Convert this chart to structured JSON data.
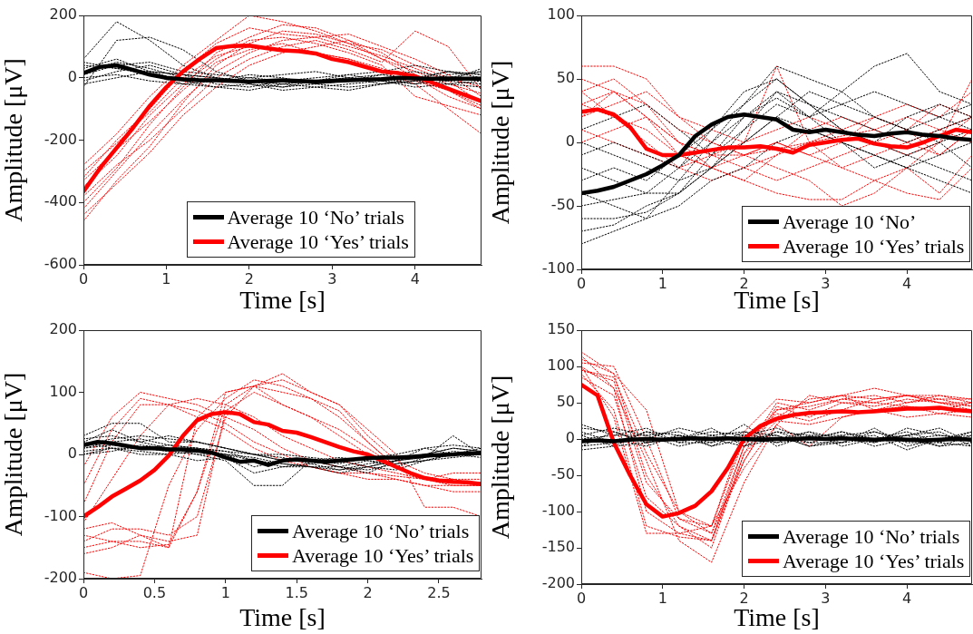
{
  "chart_data": [
    {
      "type": "line",
      "xlabel": "Time [s]",
      "ylabel": "Amplitude [μV]",
      "xlim": [
        0,
        4.8
      ],
      "xticks": [
        0,
        1,
        2,
        3,
        4
      ],
      "ylim": [
        -600,
        200
      ],
      "yticks": [
        -600,
        -400,
        -200,
        0,
        200
      ],
      "legend": "bottom",
      "x": [
        0,
        0.4,
        0.8,
        1.2,
        1.6,
        2.0,
        2.4,
        2.8,
        3.2,
        3.6,
        4.0,
        4.4,
        4.8
      ],
      "series": [
        {
          "color": "#000000",
          "line_style": "dotted",
          "values": [
            60,
            180,
            120,
            40,
            0,
            -10,
            -20,
            -10,
            0,
            10,
            -5,
            20,
            10
          ]
        },
        {
          "color": "#000000",
          "line_style": "dotted",
          "values": [
            -30,
            120,
            130,
            90,
            20,
            -10,
            -30,
            -20,
            -10,
            0,
            -20,
            10,
            20
          ]
        },
        {
          "color": "#000000",
          "line_style": "dotted",
          "values": [
            50,
            30,
            10,
            -20,
            -30,
            -20,
            -40,
            -30,
            -20,
            -10,
            0,
            -10,
            -20
          ]
        },
        {
          "color": "#000000",
          "line_style": "dotted",
          "values": [
            20,
            50,
            30,
            0,
            -10,
            10,
            0,
            -20,
            -10,
            10,
            20,
            0,
            -10
          ]
        },
        {
          "color": "#000000",
          "line_style": "dotted",
          "values": [
            -10,
            20,
            40,
            10,
            -20,
            -30,
            -10,
            0,
            10,
            -10,
            -20,
            -10,
            30
          ]
        },
        {
          "color": "#000000",
          "line_style": "dotted",
          "values": [
            30,
            60,
            20,
            -10,
            -30,
            -40,
            -20,
            -30,
            -40,
            -20,
            0,
            20,
            10
          ]
        },
        {
          "color": "#000000",
          "line_style": "dotted",
          "values": [
            0,
            10,
            -10,
            -20,
            -10,
            0,
            10,
            20,
            0,
            -10,
            -30,
            -20,
            -10
          ]
        },
        {
          "color": "#000000",
          "line_style": "dotted",
          "values": [
            40,
            30,
            20,
            10,
            0,
            -20,
            -30,
            -10,
            10,
            20,
            40,
            20,
            0
          ]
        },
        {
          "color": "#000000",
          "line_style": "dotted",
          "values": [
            10,
            40,
            50,
            20,
            10,
            0,
            -10,
            -20,
            -30,
            -20,
            -10,
            -20,
            -30
          ]
        },
        {
          "color": "#000000",
          "line_style": "dotted",
          "values": [
            -20,
            0,
            20,
            10,
            0,
            -10,
            -20,
            -10,
            0,
            -20,
            -10,
            0,
            20
          ]
        },
        {
          "color": "#ff0000",
          "line_style": "dotted",
          "values": [
            -280,
            -180,
            -60,
            40,
            120,
            200,
            180,
            150,
            110,
            60,
            20,
            -20,
            -50
          ]
        },
        {
          "color": "#ff0000",
          "line_style": "dotted",
          "values": [
            -320,
            -200,
            -100,
            20,
            110,
            160,
            140,
            130,
            100,
            70,
            30,
            -10,
            -80
          ]
        },
        {
          "color": "#ff0000",
          "line_style": "dotted",
          "values": [
            -400,
            -290,
            -150,
            -30,
            80,
            130,
            170,
            160,
            120,
            60,
            0,
            -60,
            -100
          ]
        },
        {
          "color": "#ff0000",
          "line_style": "dotted",
          "values": [
            -460,
            -330,
            -220,
            -80,
            40,
            110,
            150,
            140,
            110,
            90,
            40,
            0,
            -30
          ]
        },
        {
          "color": "#ff0000",
          "line_style": "dotted",
          "values": [
            -350,
            -250,
            -120,
            -20,
            60,
            120,
            130,
            110,
            80,
            40,
            -60,
            -90,
            -120
          ]
        },
        {
          "color": "#ff0000",
          "line_style": "dotted",
          "values": [
            -420,
            -300,
            -180,
            -70,
            20,
            80,
            120,
            130,
            140,
            100,
            60,
            10,
            -60
          ]
        },
        {
          "color": "#ff0000",
          "line_style": "dotted",
          "values": [
            -300,
            -210,
            -110,
            0,
            70,
            100,
            90,
            80,
            60,
            20,
            -20,
            -100,
            -180
          ]
        },
        {
          "color": "#ff0000",
          "line_style": "dotted",
          "values": [
            -380,
            -280,
            -200,
            -100,
            0,
            60,
            100,
            120,
            90,
            50,
            150,
            100,
            -40
          ]
        },
        {
          "color": "#ff0000",
          "line_style": "dotted",
          "values": [
            -330,
            -230,
            -140,
            -40,
            50,
            90,
            110,
            80,
            60,
            30,
            -10,
            -40,
            -90
          ]
        },
        {
          "color": "#ff0000",
          "line_style": "dotted",
          "values": [
            -440,
            -340,
            -240,
            -120,
            -30,
            40,
            80,
            100,
            120,
            80,
            10,
            -40,
            -100
          ]
        },
        {
          "name": "Average 10 ‘No’ trials",
          "color": "#000000",
          "line_style": "solid",
          "x": [
            0,
            0.2,
            0.4,
            0.6,
            0.8,
            1.0,
            1.2,
            1.4,
            1.6,
            1.8,
            2.0,
            2.2,
            2.4,
            2.6,
            2.8,
            3.0,
            3.2,
            3.4,
            3.6,
            3.8,
            4.0,
            4.2,
            4.4,
            4.6,
            4.8
          ],
          "values": [
            15,
            35,
            40,
            25,
            10,
            0,
            -5,
            -8,
            -8,
            -10,
            -12,
            -10,
            -8,
            -10,
            -12,
            -10,
            -8,
            -6,
            -4,
            0,
            -2,
            -3,
            -2,
            -3,
            -3
          ]
        },
        {
          "name": "Average 10 ‘Yes’ trials",
          "color": "#ff0000",
          "line_style": "solid",
          "x": [
            0,
            0.2,
            0.4,
            0.6,
            0.8,
            1.0,
            1.2,
            1.4,
            1.6,
            1.8,
            2.0,
            2.2,
            2.4,
            2.6,
            2.8,
            3.0,
            3.2,
            3.4,
            3.6,
            3.8,
            4.0,
            4.2,
            4.4,
            4.6,
            4.8
          ],
          "values": [
            -365,
            -290,
            -225,
            -160,
            -90,
            -30,
            20,
            60,
            95,
            102,
            103,
            95,
            88,
            85,
            78,
            60,
            50,
            35,
            20,
            15,
            5,
            -15,
            -35,
            -55,
            -75
          ]
        }
      ]
    },
    {
      "type": "line",
      "xlabel": "Time [s]",
      "ylabel": "Amplitude [μV]",
      "xlim": [
        0,
        4.8
      ],
      "xticks": [
        0,
        1,
        2,
        3,
        4
      ],
      "ylim": [
        -100,
        100
      ],
      "yticks": [
        -100,
        -50,
        0,
        50,
        100
      ],
      "legend": "bottom right",
      "x": [
        0,
        0.4,
        0.8,
        1.2,
        1.6,
        2.0,
        2.4,
        2.8,
        3.2,
        3.6,
        4.0,
        4.4,
        4.8
      ],
      "series": [
        {
          "color": "#000000",
          "line_style": "dotted",
          "values": [
            -80,
            -70,
            -60,
            -30,
            0,
            20,
            40,
            30,
            10,
            0,
            -10,
            -20,
            -30
          ]
        },
        {
          "color": "#000000",
          "line_style": "dotted",
          "values": [
            -50,
            -45,
            -40,
            -20,
            10,
            40,
            50,
            30,
            20,
            10,
            0,
            10,
            20
          ]
        },
        {
          "color": "#000000",
          "line_style": "dotted",
          "values": [
            -20,
            -30,
            -40,
            -40,
            -10,
            20,
            35,
            20,
            30,
            40,
            30,
            20,
            10
          ]
        },
        {
          "color": "#000000",
          "line_style": "dotted",
          "values": [
            0,
            -10,
            -20,
            -30,
            -20,
            0,
            20,
            40,
            30,
            20,
            10,
            0,
            -20
          ]
        },
        {
          "color": "#000000",
          "line_style": "dotted",
          "values": [
            -60,
            -60,
            -55,
            -40,
            -20,
            10,
            30,
            20,
            40,
            60,
            70,
            40,
            30
          ]
        },
        {
          "color": "#000000",
          "line_style": "dotted",
          "values": [
            -40,
            -50,
            -60,
            -50,
            -30,
            -20,
            0,
            10,
            0,
            -10,
            -20,
            -30,
            -40
          ]
        },
        {
          "color": "#000000",
          "line_style": "dotted",
          "values": [
            -10,
            0,
            -10,
            -20,
            0,
            30,
            50,
            30,
            10,
            0,
            20,
            30,
            20
          ]
        },
        {
          "color": "#000000",
          "line_style": "dotted",
          "values": [
            -70,
            -65,
            -50,
            -40,
            -20,
            0,
            20,
            10,
            0,
            -20,
            -10,
            0,
            10
          ]
        },
        {
          "color": "#000000",
          "line_style": "dotted",
          "values": [
            10,
            20,
            30,
            10,
            -10,
            10,
            40,
            20,
            0,
            -10,
            -20,
            -10,
            0
          ]
        },
        {
          "color": "#000000",
          "line_style": "dotted",
          "values": [
            -30,
            -20,
            -30,
            -10,
            10,
            30,
            60,
            50,
            40,
            20,
            10,
            20,
            30
          ]
        },
        {
          "color": "#ff0000",
          "line_style": "dotted",
          "values": [
            60,
            60,
            50,
            20,
            10,
            0,
            60,
            0,
            -20,
            -10,
            0,
            10,
            20
          ]
        },
        {
          "color": "#ff0000",
          "line_style": "dotted",
          "values": [
            40,
            50,
            30,
            10,
            0,
            -10,
            -20,
            -30,
            -50,
            -40,
            -20,
            0,
            20
          ]
        },
        {
          "color": "#ff0000",
          "line_style": "dotted",
          "values": [
            20,
            40,
            30,
            0,
            -10,
            -20,
            -30,
            -20,
            -10,
            0,
            10,
            -10,
            10
          ]
        },
        {
          "color": "#ff0000",
          "line_style": "dotted",
          "values": [
            30,
            20,
            10,
            -10,
            -20,
            -30,
            -10,
            0,
            10,
            20,
            30,
            20,
            40
          ]
        },
        {
          "color": "#ff0000",
          "line_style": "dotted",
          "values": [
            10,
            0,
            -10,
            -20,
            -10,
            -10,
            0,
            -10,
            -20,
            -30,
            -40,
            -45,
            -20
          ]
        },
        {
          "color": "#ff0000",
          "line_style": "dotted",
          "values": [
            50,
            40,
            20,
            0,
            -10,
            0,
            10,
            20,
            10,
            0,
            -10,
            0,
            50
          ]
        },
        {
          "color": "#ff0000",
          "line_style": "dotted",
          "values": [
            0,
            10,
            20,
            0,
            -20,
            -30,
            -40,
            -45,
            -45,
            -30,
            -20,
            -40,
            -10
          ]
        },
        {
          "color": "#ff0000",
          "line_style": "dotted",
          "values": [
            20,
            30,
            40,
            20,
            0,
            -10,
            -5,
            0,
            5,
            10,
            20,
            10,
            0
          ]
        },
        {
          "color": "#ff0000",
          "line_style": "dotted",
          "values": [
            40,
            20,
            0,
            -20,
            -30,
            -20,
            -10,
            10,
            20,
            10,
            0,
            -10,
            10
          ]
        },
        {
          "color": "#ff0000",
          "line_style": "dotted",
          "values": [
            30,
            40,
            20,
            -10,
            -20,
            -10,
            0,
            -10,
            0,
            20,
            10,
            30,
            20
          ]
        },
        {
          "name": "Average 10 ‘No’",
          "color": "#000000",
          "line_style": "solid",
          "x": [
            0,
            0.2,
            0.4,
            0.6,
            0.8,
            1.0,
            1.2,
            1.4,
            1.6,
            1.8,
            2.0,
            2.2,
            2.4,
            2.6,
            2.8,
            3.0,
            3.2,
            3.4,
            3.6,
            3.8,
            4.0,
            4.2,
            4.4,
            4.6,
            4.8
          ],
          "values": [
            -40,
            -38,
            -35,
            -30,
            -25,
            -18,
            -10,
            5,
            14,
            20,
            22,
            20,
            18,
            10,
            8,
            10,
            8,
            6,
            5,
            7,
            8,
            6,
            5,
            3,
            2
          ]
        },
        {
          "name": "Average 10 ‘Yes’ trials",
          "color": "#ff0000",
          "line_style": "solid",
          "x": [
            0,
            0.2,
            0.4,
            0.6,
            0.8,
            1.0,
            1.2,
            1.4,
            1.6,
            1.8,
            2.0,
            2.2,
            2.4,
            2.6,
            2.8,
            3.0,
            3.2,
            3.4,
            3.6,
            3.8,
            4.0,
            4.2,
            4.4,
            4.6,
            4.8
          ],
          "values": [
            24,
            26,
            22,
            12,
            -5,
            -10,
            -10,
            -8,
            -6,
            -4,
            -4,
            -3,
            -5,
            -8,
            -2,
            0,
            2,
            3,
            -1,
            -3,
            -4,
            0,
            5,
            10,
            8
          ]
        }
      ]
    },
    {
      "type": "line",
      "xlabel": "Time [s]",
      "ylabel": "Amplitude [μV]",
      "xlim": [
        0,
        2.8
      ],
      "xticks": [
        0,
        0.5,
        1,
        1.5,
        2,
        2.5
      ],
      "ylim": [
        -200,
        200
      ],
      "yticks": [
        -200,
        -100,
        0,
        100,
        200
      ],
      "legend": "bottom right",
      "x": [
        0,
        0.2,
        0.4,
        0.6,
        0.8,
        1.0,
        1.2,
        1.4,
        1.6,
        1.8,
        2.0,
        2.2,
        2.4,
        2.6,
        2.8
      ],
      "series": [
        {
          "color": "#000000",
          "line_style": "dotted",
          "values": [
            20,
            40,
            20,
            10,
            0,
            -10,
            -50,
            -50,
            -10,
            -20,
            -10,
            -20,
            -5,
            30,
            0
          ]
        },
        {
          "color": "#000000",
          "line_style": "dotted",
          "values": [
            10,
            20,
            25,
            15,
            10,
            0,
            -10,
            -20,
            -20,
            -30,
            -20,
            -10,
            0,
            10,
            5
          ]
        },
        {
          "color": "#000000",
          "line_style": "dotted",
          "values": [
            0,
            10,
            0,
            0,
            5,
            0,
            -20,
            -10,
            -10,
            -20,
            -30,
            -10,
            10,
            0,
            -5
          ]
        },
        {
          "color": "#000000",
          "line_style": "dotted",
          "values": [
            30,
            50,
            50,
            20,
            20,
            10,
            0,
            -5,
            -15,
            -10,
            -5,
            0,
            10,
            15,
            10
          ]
        },
        {
          "color": "#000000",
          "line_style": "dotted",
          "values": [
            5,
            10,
            5,
            0,
            -10,
            -5,
            -30,
            -20,
            -15,
            -25,
            -20,
            -10,
            -5,
            0,
            0
          ]
        },
        {
          "color": "#000000",
          "line_style": "dotted",
          "values": [
            15,
            25,
            30,
            25,
            20,
            10,
            0,
            -10,
            -10,
            -15,
            -5,
            -5,
            0,
            10,
            5
          ]
        },
        {
          "color": "#000000",
          "line_style": "dotted",
          "values": [
            0,
            5,
            15,
            10,
            10,
            5,
            -10,
            -15,
            -20,
            -20,
            -25,
            -15,
            -10,
            -5,
            0
          ]
        },
        {
          "color": "#000000",
          "line_style": "dotted",
          "values": [
            25,
            30,
            20,
            30,
            20,
            10,
            0,
            0,
            -5,
            -10,
            -20,
            -25,
            -10,
            0,
            10
          ]
        },
        {
          "color": "#000000",
          "line_style": "dotted",
          "values": [
            10,
            15,
            10,
            5,
            0,
            0,
            -5,
            -15,
            -20,
            -25,
            -15,
            -10,
            -5,
            5,
            0
          ]
        },
        {
          "color": "#000000",
          "line_style": "dotted",
          "values": [
            20,
            10,
            10,
            15,
            10,
            5,
            0,
            -10,
            -10,
            -5,
            -10,
            -15,
            -10,
            0,
            5
          ]
        },
        {
          "color": "#ff0000",
          "line_style": "dotted",
          "values": [
            -130,
            -140,
            -150,
            -145,
            -60,
            80,
            110,
            130,
            100,
            80,
            40,
            0,
            -85,
            -85,
            -100
          ]
        },
        {
          "color": "#ff0000",
          "line_style": "dotted",
          "values": [
            -190,
            -200,
            -195,
            -50,
            40,
            90,
            120,
            110,
            90,
            70,
            20,
            -20,
            -40,
            -50,
            -50
          ]
        },
        {
          "color": "#ff0000",
          "line_style": "dotted",
          "values": [
            -140,
            -120,
            -120,
            -130,
            -100,
            60,
            110,
            120,
            100,
            80,
            30,
            -10,
            -30,
            -40,
            -40
          ]
        },
        {
          "color": "#ff0000",
          "line_style": "dotted",
          "values": [
            -120,
            -110,
            -130,
            -140,
            -130,
            70,
            100,
            80,
            60,
            40,
            10,
            -20,
            -40,
            -30,
            -30
          ]
        },
        {
          "color": "#ff0000",
          "line_style": "dotted",
          "values": [
            -50,
            40,
            90,
            80,
            70,
            50,
            20,
            0,
            -20,
            -30,
            -30,
            -40,
            -50,
            -50,
            -50
          ]
        },
        {
          "color": "#ff0000",
          "line_style": "dotted",
          "values": [
            -80,
            20,
            80,
            80,
            60,
            40,
            10,
            -10,
            -20,
            -30,
            -40,
            -40,
            -50,
            -60,
            -60
          ]
        },
        {
          "color": "#ff0000",
          "line_style": "dotted",
          "values": [
            -150,
            -140,
            -140,
            -150,
            60,
            100,
            110,
            100,
            90,
            60,
            20,
            -20,
            -40,
            -40,
            -50
          ]
        },
        {
          "color": "#ff0000",
          "line_style": "dotted",
          "values": [
            -20,
            60,
            100,
            90,
            80,
            60,
            40,
            10,
            -10,
            -20,
            -30,
            -35,
            -40,
            -40,
            -50
          ]
        },
        {
          "color": "#ff0000",
          "line_style": "dotted",
          "values": [
            -110,
            -40,
            30,
            80,
            90,
            80,
            60,
            30,
            10,
            -10,
            -20,
            -30,
            -40,
            -45,
            -45
          ]
        },
        {
          "color": "#ff0000",
          "line_style": "dotted",
          "values": [
            -160,
            -150,
            -130,
            -150,
            -60,
            100,
            110,
            80,
            60,
            30,
            0,
            -20,
            -40,
            -45,
            -50
          ]
        },
        {
          "name": "Average 10 ‘No’ trials",
          "color": "#000000",
          "line_style": "solid",
          "x": [
            0,
            0.1,
            0.2,
            0.3,
            0.4,
            0.5,
            0.6,
            0.7,
            0.8,
            0.9,
            1.0,
            1.1,
            1.2,
            1.3,
            1.4,
            1.5,
            1.6,
            1.7,
            1.8,
            1.9,
            2.0,
            2.1,
            2.2,
            2.3,
            2.4,
            2.5,
            2.6,
            2.7,
            2.8
          ],
          "values": [
            15,
            20,
            18,
            14,
            10,
            10,
            8,
            8,
            6,
            3,
            -5,
            -12,
            -10,
            -17,
            -10,
            -8,
            -10,
            -12,
            -10,
            -8,
            -6,
            -5,
            -5,
            -4,
            -2,
            -1,
            0,
            2,
            2
          ]
        },
        {
          "name": "Average 10 ‘Yes’ trials",
          "color": "#ff0000",
          "line_style": "solid",
          "x": [
            0,
            0.1,
            0.2,
            0.3,
            0.4,
            0.5,
            0.6,
            0.7,
            0.8,
            0.9,
            1.0,
            1.1,
            1.2,
            1.3,
            1.4,
            1.5,
            1.6,
            1.7,
            1.8,
            1.9,
            2.0,
            2.1,
            2.2,
            2.3,
            2.4,
            2.5,
            2.6,
            2.7,
            2.8
          ],
          "values": [
            -100,
            -85,
            -68,
            -55,
            -42,
            -25,
            -2,
            30,
            55,
            65,
            68,
            65,
            52,
            48,
            38,
            35,
            28,
            20,
            12,
            5,
            0,
            -10,
            -20,
            -30,
            -38,
            -42,
            -44,
            -45,
            -48
          ]
        }
      ]
    },
    {
      "type": "line",
      "xlabel": "Time [s]",
      "ylabel": "Amplitude [μV]",
      "xlim": [
        0,
        4.8
      ],
      "xticks": [
        0,
        1,
        2,
        3,
        4
      ],
      "ylim": [
        -200,
        150
      ],
      "yticks": [
        -200,
        -150,
        -100,
        -50,
        0,
        50,
        100,
        150
      ],
      "legend": "bottom right",
      "x": [
        0,
        0.4,
        0.8,
        1.2,
        1.6,
        2.0,
        2.4,
        2.8,
        3.2,
        3.6,
        4.0,
        4.4,
        4.8
      ],
      "series": [
        {
          "color": "#000000",
          "line_style": "dotted",
          "values": [
            15,
            10,
            -5,
            5,
            0,
            -10,
            10,
            5,
            -5,
            10,
            0,
            -10,
            5
          ]
        },
        {
          "color": "#000000",
          "line_style": "dotted",
          "values": [
            -10,
            -5,
            10,
            -5,
            5,
            10,
            -5,
            0,
            10,
            -5,
            5,
            15,
            -5
          ]
        },
        {
          "color": "#000000",
          "line_style": "dotted",
          "values": [
            5,
            15,
            5,
            10,
            -10,
            0,
            5,
            -10,
            0,
            5,
            -15,
            0,
            10
          ]
        },
        {
          "color": "#000000",
          "line_style": "dotted",
          "values": [
            -15,
            -10,
            -5,
            0,
            10,
            5,
            0,
            10,
            -10,
            0,
            10,
            -5,
            -10
          ]
        },
        {
          "color": "#000000",
          "line_style": "dotted",
          "values": [
            0,
            5,
            15,
            -5,
            -5,
            20,
            -10,
            5,
            5,
            -10,
            0,
            5,
            0
          ]
        },
        {
          "color": "#000000",
          "line_style": "dotted",
          "values": [
            10,
            -5,
            0,
            15,
            5,
            -5,
            10,
            -5,
            -5,
            15,
            -10,
            0,
            5
          ]
        },
        {
          "color": "#000000",
          "line_style": "dotted",
          "values": [
            -5,
            0,
            -10,
            5,
            -5,
            5,
            15,
            0,
            10,
            0,
            5,
            -10,
            -5
          ]
        },
        {
          "color": "#000000",
          "line_style": "dotted",
          "values": [
            20,
            5,
            5,
            -10,
            0,
            0,
            -5,
            10,
            0,
            -5,
            15,
            5,
            0
          ]
        },
        {
          "color": "#000000",
          "line_style": "dotted",
          "values": [
            -10,
            10,
            -5,
            0,
            15,
            -10,
            0,
            -5,
            5,
            10,
            -5,
            -5,
            10
          ]
        },
        {
          "color": "#000000",
          "line_style": "dotted",
          "values": [
            5,
            -10,
            10,
            5,
            -10,
            10,
            5,
            -10,
            -5,
            0,
            5,
            10,
            -10
          ]
        },
        {
          "color": "#ff0000",
          "line_style": "dotted",
          "values": [
            120,
            90,
            -50,
            -120,
            -140,
            -10,
            40,
            50,
            60,
            55,
            60,
            55,
            55
          ]
        },
        {
          "color": "#ff0000",
          "line_style": "dotted",
          "values": [
            100,
            70,
            -100,
            -130,
            -140,
            -20,
            50,
            40,
            55,
            60,
            50,
            60,
            50
          ]
        },
        {
          "color": "#ff0000",
          "line_style": "dotted",
          "values": [
            105,
            100,
            0,
            -110,
            -120,
            0,
            30,
            55,
            60,
            40,
            50,
            55,
            45
          ]
        },
        {
          "color": "#ff0000",
          "line_style": "dotted",
          "values": [
            90,
            40,
            -120,
            -135,
            -140,
            -30,
            45,
            30,
            50,
            50,
            45,
            40,
            50
          ]
        },
        {
          "color": "#ff0000",
          "line_style": "dotted",
          "values": [
            95,
            80,
            -60,
            -110,
            -130,
            -10,
            35,
            25,
            40,
            55,
            60,
            50,
            45
          ]
        },
        {
          "color": "#ff0000",
          "line_style": "dotted",
          "values": [
            100,
            30,
            -130,
            -130,
            -120,
            -40,
            20,
            -10,
            30,
            40,
            45,
            35,
            40
          ]
        },
        {
          "color": "#ff0000",
          "line_style": "dotted",
          "values": [
            110,
            90,
            40,
            -100,
            -120,
            10,
            55,
            50,
            60,
            70,
            60,
            60,
            55
          ]
        },
        {
          "color": "#ff0000",
          "line_style": "dotted",
          "values": [
            85,
            60,
            -80,
            -120,
            -150,
            -20,
            25,
            20,
            30,
            40,
            30,
            35,
            30
          ]
        },
        {
          "color": "#ff0000",
          "line_style": "dotted",
          "values": [
            115,
            70,
            -30,
            -140,
            -170,
            -60,
            20,
            60,
            50,
            45,
            55,
            50,
            40
          ]
        },
        {
          "color": "#ff0000",
          "line_style": "dotted",
          "values": [
            95,
            85,
            -20,
            -100,
            -130,
            -30,
            40,
            45,
            55,
            50,
            60,
            50,
            50
          ]
        },
        {
          "name": "Average 10 ‘No’ trials",
          "color": "#000000",
          "line_style": "solid",
          "x": [
            0,
            0.2,
            0.4,
            0.6,
            0.8,
            1.0,
            1.2,
            1.4,
            1.6,
            1.8,
            2.0,
            2.2,
            2.4,
            2.6,
            2.8,
            3.0,
            3.2,
            3.4,
            3.6,
            3.8,
            4.0,
            4.2,
            4.4,
            4.6,
            4.8
          ],
          "values": [
            -3,
            -2,
            -3,
            -1,
            0,
            -1,
            0,
            1,
            0,
            1,
            0,
            -1,
            0,
            0,
            1,
            0,
            1,
            0,
            -1,
            0,
            -1,
            -2,
            -1,
            0,
            -1
          ]
        },
        {
          "name": "Average 10 ‘Yes’ trials",
          "color": "#ff0000",
          "line_style": "solid",
          "x": [
            0,
            0.2,
            0.4,
            0.6,
            0.8,
            1.0,
            1.2,
            1.4,
            1.6,
            1.8,
            2.0,
            2.2,
            2.4,
            2.6,
            2.8,
            3.0,
            3.2,
            3.4,
            3.6,
            3.8,
            4.0,
            4.2,
            4.4,
            4.6,
            4.8
          ],
          "values": [
            75,
            60,
            -5,
            -50,
            -90,
            -107,
            -102,
            -92,
            -72,
            -40,
            0,
            18,
            28,
            33,
            36,
            37,
            38,
            37,
            38,
            40,
            42,
            42,
            43,
            40,
            38
          ]
        }
      ]
    }
  ]
}
